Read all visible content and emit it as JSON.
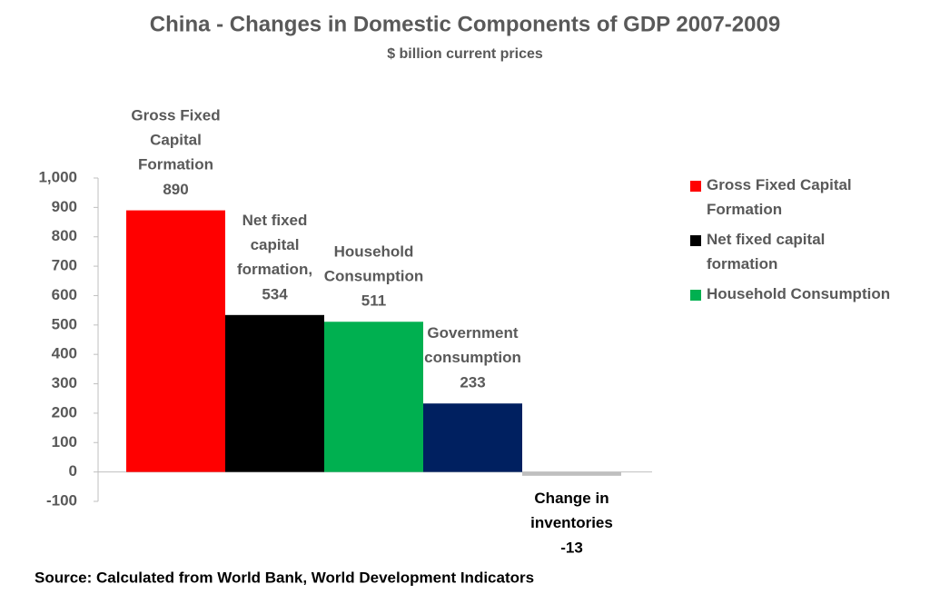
{
  "chart_data": {
    "type": "bar",
    "title": "China - Changes in Domestic Components of GDP 2007-2009",
    "subtitle": "$ billion current prices",
    "categories": [
      "Gross Fixed Capital Formation",
      "Net fixed capital formation,",
      "Household Consumption",
      "Government consumption",
      "Change in inventories"
    ],
    "values": [
      890,
      534,
      511,
      233,
      -13
    ],
    "colors": [
      "#ff0000",
      "#000000",
      "#00b050",
      "#002060",
      "#bfbfbf"
    ],
    "legend": [
      {
        "name": "Gross Fixed Capital Formation",
        "color": "#ff0000"
      },
      {
        "name": "Net fixed capital formation",
        "color": "#000000"
      },
      {
        "name": "Household Consumption",
        "color": "#00b050"
      }
    ],
    "ylim": [
      -100,
      1000
    ],
    "yticks": [
      -100,
      0,
      100,
      200,
      300,
      400,
      500,
      600,
      700,
      800,
      {
        "value": 900,
        "label": "900"
      },
      {
        "value": 1000,
        "label": "1,000"
      }
    ],
    "source": "Source: Calculated from World Bank, World Development Indicators"
  }
}
